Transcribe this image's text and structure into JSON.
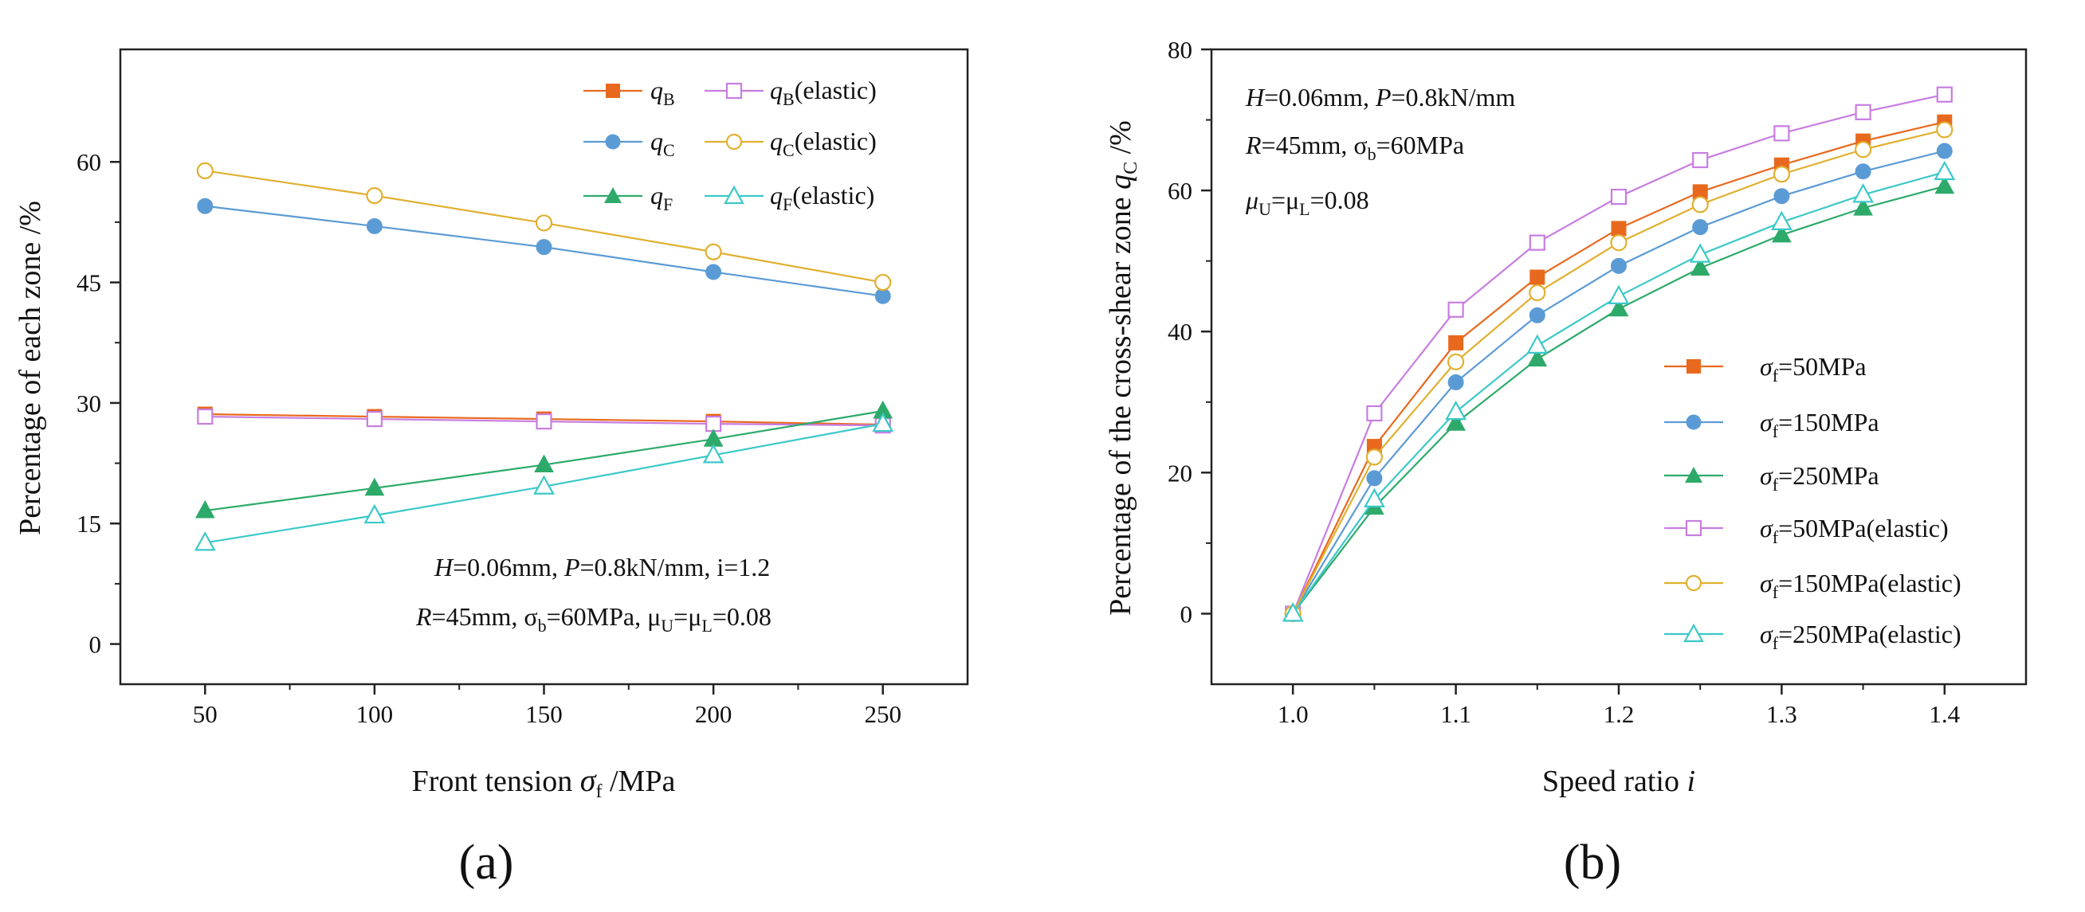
{
  "chart_data": [
    {
      "type": "line",
      "panel_label": "(a)",
      "xlabel_parts": [
        "Front tension ",
        "σ",
        "f",
        " /MPa"
      ],
      "ylabel": "Percentage of each zone /%",
      "x": [
        50,
        100,
        150,
        200,
        250
      ],
      "xlim": [
        25,
        275
      ],
      "ylim": [
        -5,
        74
      ],
      "xticks": [
        "50",
        "100",
        "150",
        "200",
        "250"
      ],
      "xtick_values": [
        50,
        100,
        150,
        200,
        250
      ],
      "yticks": [
        "0",
        "15",
        "30",
        "45",
        "60"
      ],
      "ytick_values": [
        0,
        15,
        30,
        45,
        60
      ],
      "series": [
        {
          "key": "qB",
          "name": "qB",
          "legend": [
            "q",
            "B",
            ""
          ],
          "marker": "square-filled",
          "color": "#E8691E",
          "values": [
            28.6,
            28.3,
            28.0,
            27.7,
            27.3
          ]
        },
        {
          "key": "qBe",
          "name": "qB(elastic)",
          "legend": [
            "q",
            "B",
            "(elastic)"
          ],
          "marker": "square-open",
          "color": "#C77DE0",
          "values": [
            28.3,
            28.0,
            27.7,
            27.4,
            27.2
          ]
        },
        {
          "key": "qC",
          "name": "qC",
          "legend": [
            "q",
            "C",
            ""
          ],
          "marker": "circle-filled",
          "color": "#5B9BD5",
          "values": [
            54.5,
            52.0,
            49.4,
            46.3,
            43.3
          ]
        },
        {
          "key": "qCe",
          "name": "qC(elastic)",
          "legend": [
            "q",
            "C",
            "(elastic)"
          ],
          "marker": "circle-open",
          "color": "#E0B030",
          "values": [
            58.9,
            55.8,
            52.4,
            48.8,
            45.0
          ]
        },
        {
          "key": "qF",
          "name": "qF",
          "legend": [
            "q",
            "F",
            ""
          ],
          "marker": "triangle-filled",
          "color": "#2DAA6A",
          "values": [
            16.6,
            19.4,
            22.3,
            25.5,
            29.0
          ]
        },
        {
          "key": "qFe",
          "name": "qF(elastic)",
          "legend": [
            "q",
            "F",
            "(elastic)"
          ],
          "marker": "triangle-open",
          "color": "#3CC8C8",
          "values": [
            12.6,
            16.0,
            19.6,
            23.5,
            27.4
          ]
        }
      ],
      "annotation_lines": [
        [
          "H",
          "=0.06mm, ",
          "P",
          "=0.8kN/mm, i=1.2"
        ],
        [
          "R",
          "=45mm, σ",
          "b",
          "=60MPa, μ",
          "U",
          "=μ",
          "L",
          "=0.08"
        ]
      ],
      "legend_position": "top-right",
      "annotation_position": "bottom-right"
    },
    {
      "type": "line",
      "panel_label": "(b)",
      "xlabel_parts": [
        "Speed ratio ",
        "i"
      ],
      "ylabel_parts": [
        "Percentage of the cross-shear zone ",
        "q",
        "C",
        " /%"
      ],
      "x": [
        1.0,
        1.05,
        1.1,
        1.15,
        1.2,
        1.25,
        1.3,
        1.35,
        1.4
      ],
      "xlim": [
        0.95,
        1.45
      ],
      "ylim": [
        -10,
        80
      ],
      "xticks": [
        "1.0",
        "1.1",
        "1.2",
        "1.3",
        "1.4"
      ],
      "xtick_values": [
        1.0,
        1.1,
        1.2,
        1.3,
        1.4
      ],
      "yticks": [
        "0",
        "20",
        "40",
        "60",
        "80"
      ],
      "ytick_values": [
        0,
        20,
        40,
        60,
        80
      ],
      "series": [
        {
          "key": "s50",
          "name": "σf=50MPa",
          "legend": [
            "σ",
            "f",
            "=50MPa"
          ],
          "marker": "square-filled",
          "color": "#E8691E",
          "values": [
            0,
            23.7,
            38.4,
            47.7,
            54.6,
            59.8,
            63.6,
            67.0,
            69.7
          ]
        },
        {
          "key": "s150",
          "name": "σf=150MPa",
          "legend": [
            "σ",
            "f",
            "=150MPa"
          ],
          "marker": "circle-filled",
          "color": "#5B9BD5",
          "values": [
            0,
            19.2,
            32.8,
            42.3,
            49.3,
            54.8,
            59.2,
            62.7,
            65.6
          ]
        },
        {
          "key": "s250",
          "name": "σf=250MPa",
          "legend": [
            "σ",
            "f",
            "=250MPa"
          ],
          "marker": "triangle-filled",
          "color": "#2DAA6A",
          "values": [
            0,
            15.1,
            27.0,
            36.1,
            43.2,
            49.0,
            53.7,
            57.5,
            60.6
          ]
        },
        {
          "key": "s50e",
          "name": "σf=50MPa(elastic)",
          "legend": [
            "σ",
            "f",
            "=50MPa(elastic)"
          ],
          "marker": "square-open",
          "color": "#C77DE0",
          "values": [
            0,
            28.4,
            43.1,
            52.6,
            59.1,
            64.3,
            68.1,
            71.1,
            73.6
          ]
        },
        {
          "key": "s150e",
          "name": "σf=150MPa(elastic)",
          "legend": [
            "σ",
            "f",
            "=150MPa(elastic)"
          ],
          "marker": "circle-open",
          "color": "#E0B030",
          "values": [
            0,
            22.2,
            35.7,
            45.5,
            52.6,
            58.0,
            62.3,
            65.8,
            68.6
          ]
        },
        {
          "key": "s250e",
          "name": "σf=250MPa(elastic)",
          "legend": [
            "σ",
            "f",
            "=250MPa(elastic)"
          ],
          "marker": "triangle-open",
          "color": "#3CC8C8",
          "values": [
            0,
            16.2,
            28.6,
            38.0,
            45.0,
            50.9,
            55.5,
            59.4,
            62.6
          ]
        }
      ],
      "annotation_lines": [
        [
          "H",
          "=0.06mm, ",
          "P",
          "=0.8kN/mm"
        ],
        [
          "R",
          "=45mm, σ",
          "b",
          "=60MPa"
        ],
        [
          "μ",
          "U",
          "=μ",
          "L",
          "=0.08"
        ]
      ],
      "legend_position": "center-right",
      "annotation_position": "top-left"
    }
  ]
}
